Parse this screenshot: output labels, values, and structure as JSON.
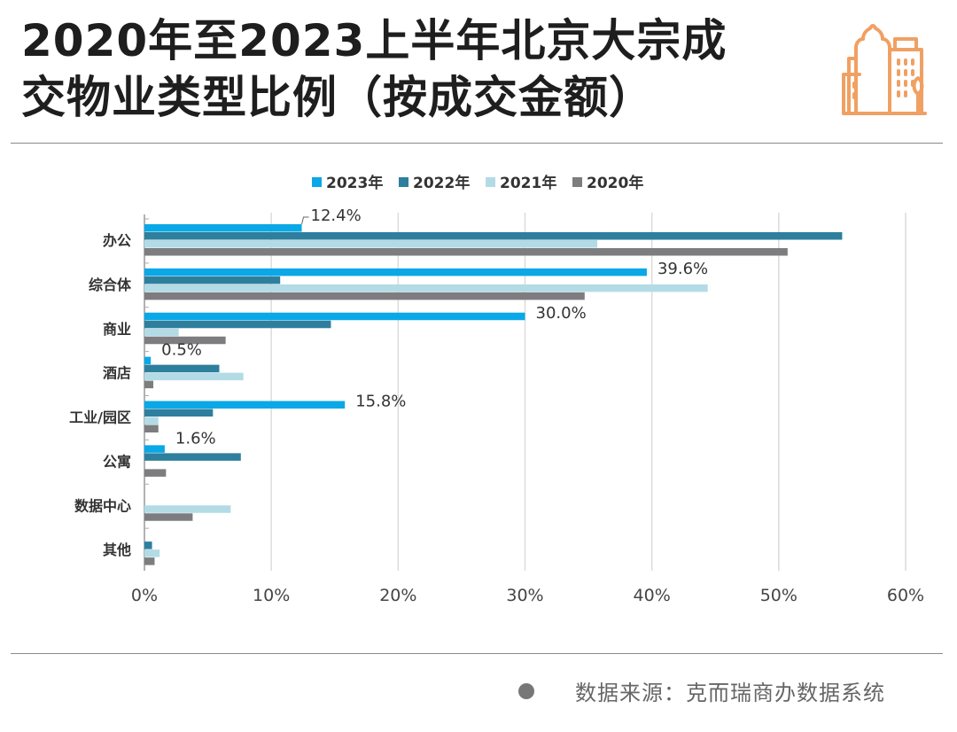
{
  "header": {
    "title_line1": "2020年至2023上半年北京大宗成",
    "title_line2": "交物业类型比例（按成交金额）",
    "icon": "building-icon",
    "accent_color": "#f0a062"
  },
  "footer": {
    "source": "数据来源：克而瑞商办数据系统",
    "bullet_icon": "circle-bullet-icon"
  },
  "chart_data": {
    "type": "bar",
    "orientation": "horizontal",
    "title": "",
    "xlabel": "",
    "ylabel": "",
    "xlim": [
      0,
      60
    ],
    "xticks": [
      "0%",
      "10%",
      "20%",
      "30%",
      "40%",
      "50%",
      "60%"
    ],
    "xtick_values": [
      0,
      10,
      20,
      30,
      40,
      50,
      60
    ],
    "grid": "vertical",
    "legend_position": "top-center",
    "categories": [
      "办公",
      "综合体",
      "商业",
      "酒店",
      "工业/园区",
      "公寓",
      "数据中心",
      "其他"
    ],
    "series": [
      {
        "name": "2023年",
        "color": "#0aa8e6",
        "values": [
          12.4,
          39.6,
          30.0,
          0.5,
          15.8,
          1.6,
          0,
          0
        ],
        "labels": [
          "12.4%",
          "39.6%",
          "30.0%",
          "0.5%",
          "15.8%",
          "1.6%",
          "",
          ""
        ]
      },
      {
        "name": "2022年",
        "color": "#2e7f9e",
        "values": [
          55.0,
          10.7,
          14.7,
          5.9,
          5.4,
          7.6,
          0,
          0.6
        ]
      },
      {
        "name": "2021年",
        "color": "#b3dbe6",
        "values": [
          35.7,
          44.4,
          2.7,
          7.8,
          1.1,
          0,
          6.8,
          1.2
        ]
      },
      {
        "name": "2020年",
        "color": "#7d7d7f",
        "values": [
          50.7,
          34.7,
          6.4,
          0.7,
          1.1,
          1.7,
          3.8,
          0.8
        ]
      }
    ]
  }
}
